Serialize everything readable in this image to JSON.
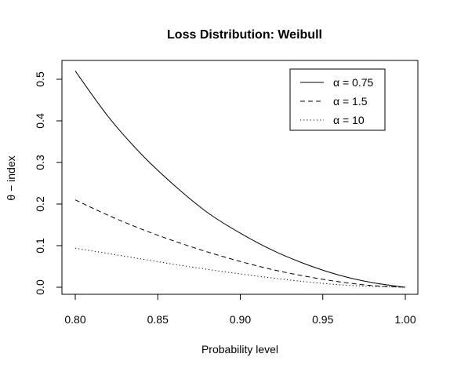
{
  "chart_data": {
    "type": "line",
    "title": "Loss Distribution: Weibull",
    "xlabel": "Probability level",
    "ylabel": "θ − index",
    "xlim": [
      0.8,
      1.0
    ],
    "ylim": [
      0.0,
      0.5
    ],
    "xticks": [
      0.8,
      0.85,
      0.9,
      0.95,
      1.0
    ],
    "xtick_labels": [
      "0.80",
      "0.85",
      "0.90",
      "0.95",
      "1.00"
    ],
    "yticks": [
      0.0,
      0.1,
      0.2,
      0.3,
      0.4,
      0.5
    ],
    "ytick_labels": [
      "0.0",
      "0.1",
      "0.2",
      "0.3",
      "0.4",
      "0.5"
    ],
    "grid": false,
    "legend_position": "top-right",
    "x": [
      0.8,
      0.82,
      0.84,
      0.86,
      0.88,
      0.9,
      0.92,
      0.94,
      0.96,
      0.98,
      1.0
    ],
    "series": [
      {
        "name": "α = 0.75",
        "line_style": "solid",
        "color": "#000000",
        "values": [
          0.52,
          0.41,
          0.32,
          0.245,
          0.18,
          0.13,
          0.088,
          0.055,
          0.029,
          0.011,
          0.0
        ]
      },
      {
        "name": "α = 1.5",
        "line_style": "dashed",
        "color": "#000000",
        "values": [
          0.21,
          0.173,
          0.14,
          0.111,
          0.085,
          0.062,
          0.042,
          0.026,
          0.013,
          0.004,
          0.0
        ]
      },
      {
        "name": "α = 10",
        "line_style": "dotted",
        "color": "#000000",
        "values": [
          0.094,
          0.081,
          0.068,
          0.055,
          0.043,
          0.032,
          0.022,
          0.013,
          0.006,
          0.002,
          0.0
        ]
      }
    ]
  }
}
